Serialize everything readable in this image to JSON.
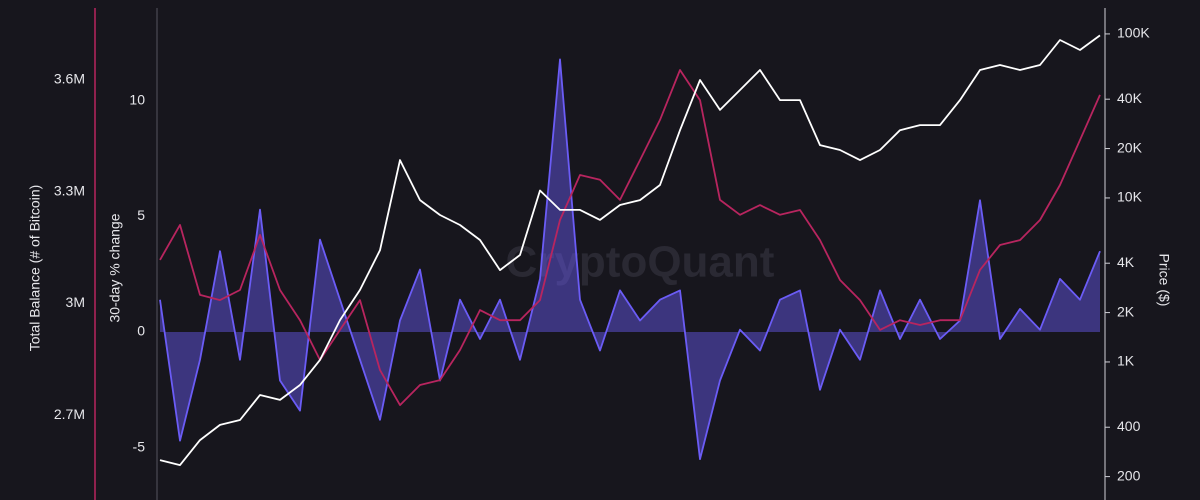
{
  "chart_data": {
    "type": "line",
    "watermark": "CryptoQuant",
    "y_label": "Total Balance (# of Bitcoin)",
    "y2_label": "30-day % change",
    "y3_label": "Price ($)",
    "ylim": [
      2472000,
      3815000
    ],
    "yticks": [
      {
        "value": 2700000,
        "label": "2.7M"
      },
      {
        "value": 3000000,
        "label": "3M"
      },
      {
        "value": 3300000,
        "label": "3.3M"
      },
      {
        "value": 3600000,
        "label": "3.6M"
      }
    ],
    "y2lim": [
      -7.27,
      14.37
    ],
    "y2ticks": [
      -5,
      0,
      5,
      10
    ],
    "y3lim": [
      144,
      161000
    ],
    "y3_log": true,
    "y3ticks": [
      200,
      400,
      {
        "value": 1000,
        "label": "1K"
      },
      {
        "value": 2000,
        "label": "2K"
      },
      {
        "value": 4000,
        "label": "4K"
      },
      {
        "value": 10000,
        "label": "10K"
      },
      {
        "value": 20000,
        "label": "20K"
      },
      {
        "value": 40000,
        "label": "40K"
      },
      {
        "value": 100000,
        "label": "100K"
      }
    ],
    "grid": false,
    "series": [
      {
        "name": "Total Balance",
        "color": "#b8255f",
        "axis": "y",
        "style": "line",
        "values": [
          3117000,
          3211000,
          3023000,
          3009000,
          3036000,
          3184000,
          3036000,
          2955000,
          2848000,
          2929000,
          3009000,
          2821000,
          2727000,
          2781000,
          2794000,
          2875000,
          2982000,
          2955000,
          2955000,
          3009000,
          3224000,
          3345000,
          3332000,
          3278000,
          3385000,
          3493000,
          3627000,
          3546000,
          3278000,
          3238000,
          3264000,
          3238000,
          3251000,
          3170000,
          3063000,
          3009000,
          2929000,
          2955000,
          2942000,
          2955000,
          2955000,
          3090000,
          3157000,
          3170000,
          3224000,
          3318000,
          3439000,
          3560000
        ]
      },
      {
        "name": "30-day % change",
        "color": "#6b5cf6",
        "axis": "y2",
        "style": "area",
        "values": [
          1.4,
          -4.7,
          -1.2,
          3.5,
          -1.2,
          5.3,
          -2.1,
          -3.4,
          4.0,
          1.4,
          -1.2,
          -3.8,
          0.5,
          2.7,
          -2.1,
          1.4,
          -0.3,
          1.4,
          -1.2,
          2.3,
          11.8,
          1.4,
          -0.8,
          1.8,
          0.5,
          1.4,
          1.8,
          -5.5,
          -2.1,
          0.1,
          -0.8,
          1.4,
          1.8,
          -2.5,
          0.1,
          -1.2,
          1.8,
          -0.3,
          1.4,
          -0.3,
          0.5,
          5.7,
          -0.3,
          1.0,
          0.1,
          2.3,
          1.4,
          3.5
        ]
      },
      {
        "name": "Price",
        "color": "#ffffff",
        "axis": "y3",
        "style": "line",
        "values": [
          252,
          235,
          334,
          413,
          443,
          629,
          587,
          724,
          1030,
          1800,
          2750,
          4800,
          17000,
          9700,
          7870,
          6840,
          5540,
          3630,
          4490,
          11100,
          8450,
          8450,
          7350,
          9060,
          9700,
          12000,
          25900,
          52400,
          34400,
          45500,
          60300,
          39500,
          39500,
          21000,
          19600,
          17000,
          19600,
          25900,
          27800,
          27800,
          39500,
          60300,
          64600,
          60300,
          64600,
          91800,
          79800,
          98000
        ]
      }
    ]
  }
}
